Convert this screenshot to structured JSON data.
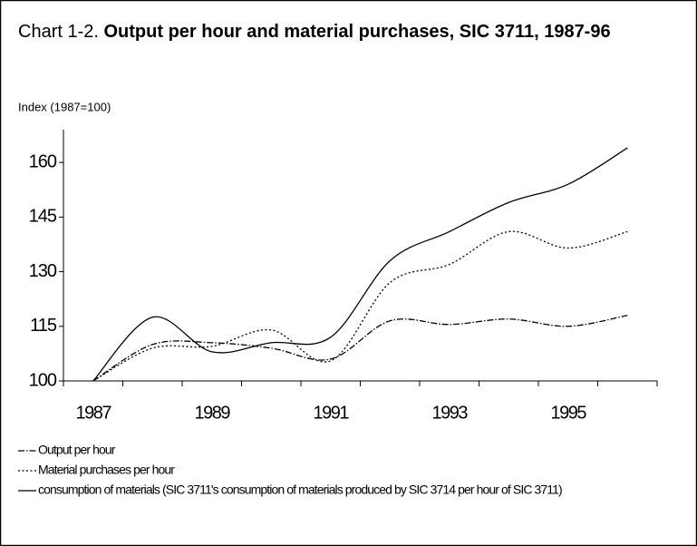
{
  "chart_data": {
    "type": "line",
    "title_prefix": "Chart 1-2.",
    "title": "Output per hour and material purchases, SIC 3711, 1987-96",
    "y_label": "Index (1987=100)",
    "categories": [
      "1987",
      null,
      "1989",
      null,
      "1991",
      null,
      "1993",
      null,
      "1995",
      null
    ],
    "ylim": [
      100,
      169
    ],
    "yticks": [
      100,
      115,
      130,
      145,
      160
    ],
    "smooth": true,
    "series": [
      {
        "name": "Output per hour",
        "color": "#000000",
        "dash": "7 2 1.5 2",
        "values": [
          100,
          110,
          110.5,
          109,
          106,
          116.5,
          115.5,
          117,
          115,
          118
        ]
      },
      {
        "name": "Material purchases per hour",
        "color": "#000000",
        "dash": "2 2.5",
        "values": [
          100,
          109,
          109.5,
          114,
          105.5,
          127,
          132,
          141,
          136.5,
          141
        ]
      },
      {
        "name": "consumption of materials (SIC 3711's consumption of materials produced by SIC 3714 per hour of SIC 3711)",
        "color": "#000000",
        "dash": "none",
        "values": [
          100,
          117.5,
          108,
          110.5,
          112,
          133,
          141,
          149,
          154,
          164
        ]
      }
    ]
  }
}
